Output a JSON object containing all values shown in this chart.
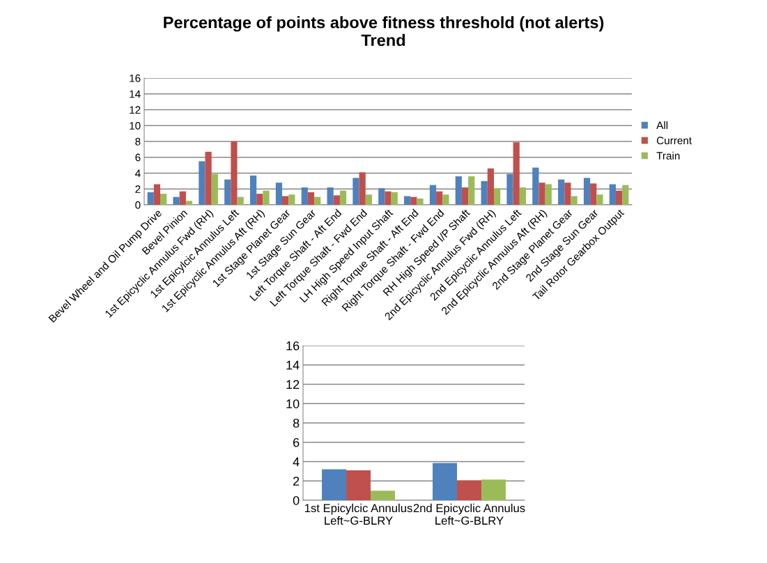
{
  "chart_data": [
    {
      "type": "bar",
      "title": "Percentage of points above fitness threshold (not alerts)\nTrend",
      "categories": [
        "Bevel Wheel and Oil Pump Drive",
        "Bevel Pinion",
        "1st Epicyclic Annulus Fwd (RH)",
        "1st Epicylcic Annulus Left",
        "1st Epicyclic Annulus Aft (RH)",
        "1st Stage Planet Gear",
        "1st Stage Sun Gear",
        "Left Torque Shaft - Aft End",
        "Left Torque Shaft - Fwd End",
        "LH High Speed Input Shaft",
        "Right Torque Shaft - Aft End",
        "Right Torque Shaft - Fwd End",
        "RH High Speed I/P Shaft",
        "2nd Epicyclic Annulus Fwd (RH)",
        "2nd Epicyclic Annulus Left",
        "2nd Epicyclic Annulus Aft (RH)",
        "2nd Stage Planet Gear",
        "2nd Stage Sun Gear",
        "Tail Rotor Gearbox Output"
      ],
      "series": [
        {
          "name": "All",
          "color": "#4f81bd",
          "values": [
            1.6,
            1.0,
            5.5,
            3.2,
            3.7,
            2.8,
            2.2,
            2.2,
            3.4,
            2.1,
            1.1,
            2.5,
            3.6,
            3.0,
            3.9,
            4.7,
            3.2,
            3.4,
            2.6
          ]
        },
        {
          "name": "Current",
          "color": "#c0504d",
          "values": [
            2.6,
            1.7,
            6.7,
            8.0,
            1.4,
            1.1,
            1.6,
            1.2,
            4.1,
            1.7,
            1.0,
            1.7,
            2.2,
            4.6,
            7.9,
            2.8,
            2.8,
            2.7,
            1.8
          ]
        },
        {
          "name": "Train",
          "color": "#9bbb59",
          "values": [
            1.4,
            0.5,
            3.9,
            1.0,
            1.8,
            1.3,
            1.0,
            1.8,
            1.3,
            1.6,
            0.8,
            1.3,
            3.6,
            2.1,
            2.2,
            2.6,
            1.1,
            1.3,
            2.5
          ]
        }
      ],
      "ylim": [
        0,
        16
      ],
      "yticks": [
        0,
        2,
        4,
        6,
        8,
        10,
        12,
        14,
        16
      ],
      "grid": "y",
      "legend": "right"
    },
    {
      "type": "bar",
      "categories": [
        "1st Epicylcic Annulus\nLeft~G-BLRY",
        "2nd Epicyclic Annulus\nLeft~G-BLRY"
      ],
      "series": [
        {
          "color": "#4f81bd",
          "values": [
            3.2,
            3.85
          ]
        },
        {
          "color": "#c0504d",
          "values": [
            3.1,
            2.05
          ]
        },
        {
          "color": "#9bbb59",
          "values": [
            1.0,
            2.15
          ]
        }
      ],
      "ylim": [
        0,
        16
      ],
      "yticks": [
        0,
        2,
        4,
        6,
        8,
        10,
        12,
        14,
        16
      ],
      "grid": "y",
      "legend": false
    }
  ]
}
